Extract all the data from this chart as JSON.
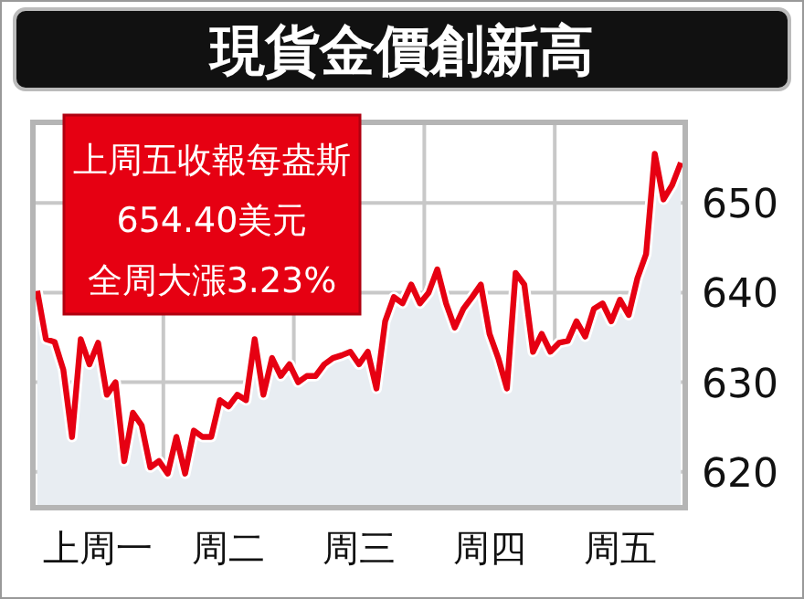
{
  "chart_data": {
    "type": "area",
    "title": "現貨金價創新高",
    "annotations": [
      "上周五收報每盎斯",
      "654.40美元",
      "全周大漲3.23%"
    ],
    "categories": [
      null,
      null,
      null,
      null,
      null,
      null,
      null,
      "上周一",
      null,
      null,
      null,
      null,
      null,
      null,
      null,
      null,
      null,
      null,
      null,
      null,
      null,
      null,
      "周二",
      null,
      null,
      null,
      null,
      null,
      null,
      null,
      null,
      null,
      null,
      null,
      null,
      null,
      null,
      "周三",
      null,
      null,
      null,
      null,
      null,
      null,
      null,
      null,
      null,
      null,
      null,
      null,
      null,
      null,
      "周四",
      null,
      null,
      null,
      null,
      null,
      null,
      null,
      null,
      null,
      null,
      null,
      null,
      null,
      null,
      "周五",
      null,
      null,
      null,
      null,
      null,
      null,
      null
    ],
    "ylim": [
      616,
      659
    ],
    "yticks": [
      620,
      630,
      640,
      650
    ],
    "grid": true,
    "series": [
      {
        "color": "#e60012",
        "values": [
          640.2,
          634.8,
          634.5,
          631.4,
          623.9,
          634.8,
          632.0,
          634.4,
          628.6,
          630.0,
          621.2,
          626.6,
          625.2,
          620.5,
          621.2,
          619.8,
          623.9,
          619.8,
          624.6,
          623.9,
          623.9,
          628.0,
          627.3,
          628.6,
          628.0,
          634.8,
          628.6,
          632.7,
          630.7,
          632.0,
          630.0,
          630.7,
          630.7,
          632.0,
          632.7,
          633.0,
          633.4,
          632.0,
          633.4,
          629.3,
          636.8,
          639.5,
          638.8,
          640.9,
          638.8,
          640.0,
          642.6,
          638.8,
          636.1,
          638.2,
          639.5,
          640.9,
          635.4,
          632.7,
          629.3,
          642.2,
          640.9,
          633.4,
          635.4,
          633.4,
          634.4,
          634.6,
          636.8,
          635.1,
          638.2,
          638.8,
          636.8,
          639.2,
          637.5,
          641.6,
          644.3,
          655.5,
          650.4,
          652.0,
          654.5
        ]
      }
    ]
  }
}
